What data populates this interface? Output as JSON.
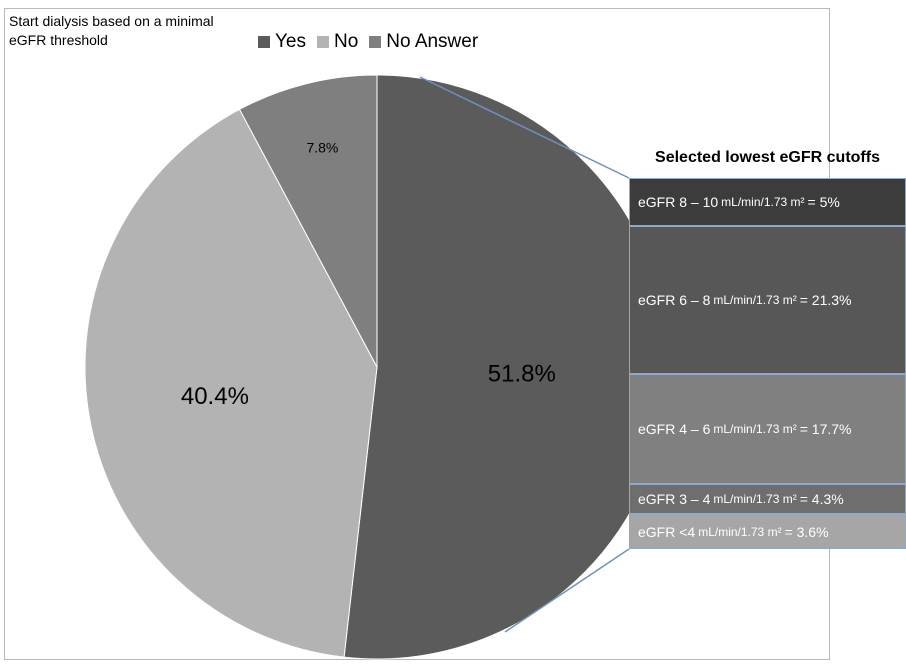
{
  "chart_data": {
    "type": "pie",
    "title": "Start dialysis based on a minimal eGFR threshold",
    "legend": {
      "placement": "top",
      "entries": [
        {
          "label": "Yes",
          "color": "#5b5b5b"
        },
        {
          "label": "No",
          "color": "#b3b3b3"
        },
        {
          "label": "No Answer",
          "color": "#7f7f7f"
        }
      ]
    },
    "slices": [
      {
        "label": "Yes",
        "value": 51.8,
        "display": "51.8%",
        "color": "#5b5b5b"
      },
      {
        "label": "No",
        "value": 40.4,
        "display": "40.4%",
        "color": "#b3b3b3"
      },
      {
        "label": "No Answer",
        "value": 7.8,
        "display": "7.8%",
        "color": "#7f7f7f"
      }
    ],
    "breakdown": {
      "of": "Yes",
      "title": "Selected lowest eGFR cutoffs",
      "rows": [
        {
          "prefix": "eGFR 8 – 10",
          "unit": "mL/min/1.73 m²",
          "suffix": "= 5%",
          "value": 5,
          "color": "#3c3c3c"
        },
        {
          "prefix": "eGFR 6 – 8",
          "unit": "mL/min/1.73 m²",
          "suffix": "= 21.3%",
          "value": 21.3,
          "color": "#575757"
        },
        {
          "prefix": "eGFR 4 – 6",
          "unit": "mL/min/1.73 m²",
          "suffix": "= 17.7%",
          "value": 17.7,
          "color": "#808080"
        },
        {
          "prefix": "eGFR 3 – 4",
          "unit": "mL/min/1.73 m²",
          "suffix": "= 4.3%",
          "value": 4.3,
          "color": "#6e6e6e"
        },
        {
          "prefix": "eGFR <4",
          "unit": "mL/min/1.73 m²",
          "suffix": "= 3.6%",
          "value": 3.6,
          "color": "#a6a6a6"
        }
      ]
    }
  }
}
